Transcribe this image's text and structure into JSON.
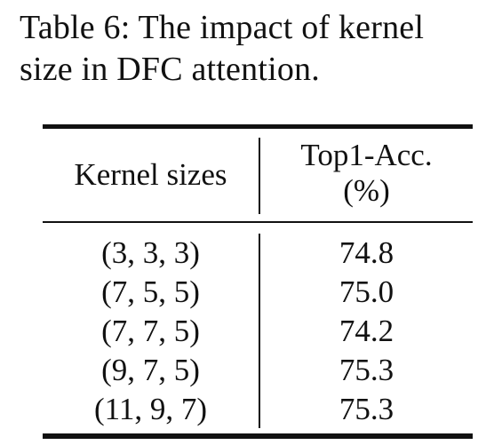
{
  "caption": {
    "line1": "Table 6: The impact of kernel",
    "line2": "size in DFC attention."
  },
  "table": {
    "headers": {
      "kernel": "Kernel sizes",
      "acc_line1": "Top1-Acc.",
      "acc_line2": "(%)"
    },
    "rows": [
      {
        "kernel": "(3, 3, 3)",
        "acc": "74.8"
      },
      {
        "kernel": "(7, 5, 5)",
        "acc": "75.0"
      },
      {
        "kernel": "(7, 7, 5)",
        "acc": "74.2"
      },
      {
        "kernel": "(9, 7, 5)",
        "acc": "75.3"
      },
      {
        "kernel": "(11, 9, 7)",
        "acc": "75.3"
      }
    ]
  }
}
